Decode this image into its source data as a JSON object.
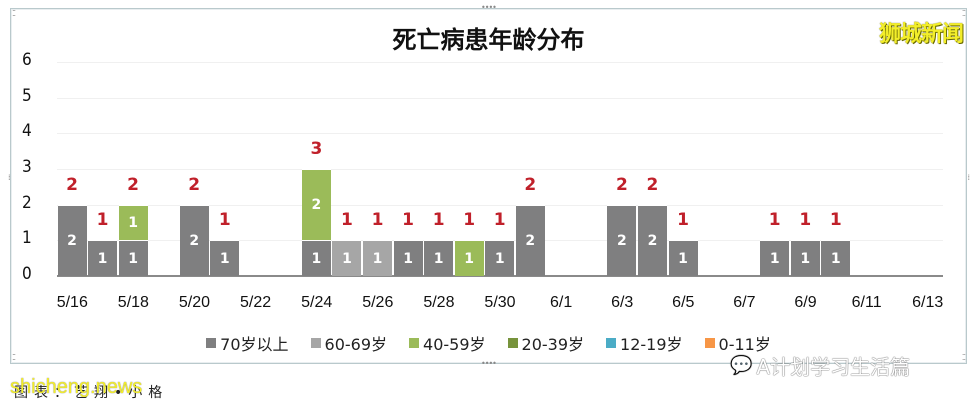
{
  "title": "死亡病患年龄分布",
  "brand": "狮城新闻",
  "watermarks": {
    "site": "shicheng.news",
    "caption": "图表：艺翔•小格",
    "account": "A计划学习生活篇",
    "account_icon": "wechat-icon"
  },
  "colors": {
    "70+": "#7f7f80",
    "60-69": "#a6a6a6",
    "40-59": "#9bbb59",
    "20-39": "#77933c",
    "12-19": "#4bacc6",
    "0-11": "#f79646",
    "total_label": "#c0202a"
  },
  "legend": [
    {
      "key": "70+",
      "label": "70岁以上"
    },
    {
      "key": "60-69",
      "label": "60-69岁"
    },
    {
      "key": "40-59",
      "label": "40-59岁"
    },
    {
      "key": "20-39",
      "label": "20-39岁"
    },
    {
      "key": "12-19",
      "label": "12-19岁"
    },
    {
      "key": "0-11",
      "label": "0-11岁"
    }
  ],
  "chart_data": {
    "type": "bar",
    "stacked": true,
    "title": "死亡病患年龄分布",
    "xlabel": "",
    "ylabel": "",
    "ylim": [
      0,
      6
    ],
    "yticks": [
      0,
      1,
      2,
      3,
      4,
      5,
      6
    ],
    "grid": true,
    "legend_position": "bottom",
    "categories": [
      "5/16",
      "5/17",
      "5/18",
      "5/19",
      "5/20",
      "5/21",
      "5/22",
      "5/23",
      "5/24",
      "5/25",
      "5/26",
      "5/27",
      "5/28",
      "5/29",
      "5/30",
      "5/31",
      "6/1",
      "6/2",
      "6/3",
      "6/4",
      "6/5",
      "6/6",
      "6/7",
      "6/8",
      "6/9",
      "6/10",
      "6/11",
      "6/12",
      "6/13"
    ],
    "xtick_labels": [
      "5/16",
      "5/18",
      "5/20",
      "5/22",
      "5/24",
      "5/26",
      "5/28",
      "5/30",
      "6/1",
      "6/3",
      "6/5",
      "6/7",
      "6/9",
      "6/11",
      "6/13"
    ],
    "series": [
      {
        "name": "70岁以上",
        "key": "70+",
        "values": [
          2,
          1,
          1,
          0,
          2,
          1,
          0,
          0,
          1,
          0,
          0,
          1,
          1,
          0,
          1,
          2,
          0,
          0,
          2,
          2,
          1,
          0,
          0,
          1,
          1,
          1,
          0,
          0,
          0
        ]
      },
      {
        "name": "60-69岁",
        "key": "60-69",
        "values": [
          0,
          0,
          0,
          0,
          0,
          0,
          0,
          0,
          0,
          1,
          1,
          0,
          0,
          0,
          0,
          0,
          0,
          0,
          0,
          0,
          0,
          0,
          0,
          0,
          0,
          0,
          0,
          0,
          0
        ]
      },
      {
        "name": "40-59岁",
        "key": "40-59",
        "values": [
          0,
          0,
          1,
          0,
          0,
          0,
          0,
          0,
          2,
          0,
          0,
          0,
          0,
          1,
          0,
          0,
          0,
          0,
          0,
          0,
          0,
          0,
          0,
          0,
          0,
          0,
          0,
          0,
          0
        ]
      },
      {
        "name": "20-39岁",
        "key": "20-39",
        "values": [
          0,
          0,
          0,
          0,
          0,
          0,
          0,
          0,
          0,
          0,
          0,
          0,
          0,
          0,
          0,
          0,
          0,
          0,
          0,
          0,
          0,
          0,
          0,
          0,
          0,
          0,
          0,
          0,
          0
        ]
      },
      {
        "name": "12-19岁",
        "key": "12-19",
        "values": [
          0,
          0,
          0,
          0,
          0,
          0,
          0,
          0,
          0,
          0,
          0,
          0,
          0,
          0,
          0,
          0,
          0,
          0,
          0,
          0,
          0,
          0,
          0,
          0,
          0,
          0,
          0,
          0,
          0
        ]
      },
      {
        "name": "0-11岁",
        "key": "0-11",
        "values": [
          0,
          0,
          0,
          0,
          0,
          0,
          0,
          0,
          0,
          0,
          0,
          0,
          0,
          0,
          0,
          0,
          0,
          0,
          0,
          0,
          0,
          0,
          0,
          0,
          0,
          0,
          0,
          0,
          0
        ]
      }
    ],
    "totals": [
      2,
      1,
      2,
      0,
      2,
      1,
      0,
      0,
      3,
      1,
      1,
      1,
      1,
      1,
      1,
      2,
      0,
      0,
      2,
      2,
      1,
      0,
      0,
      1,
      1,
      1,
      0,
      0,
      0
    ]
  }
}
